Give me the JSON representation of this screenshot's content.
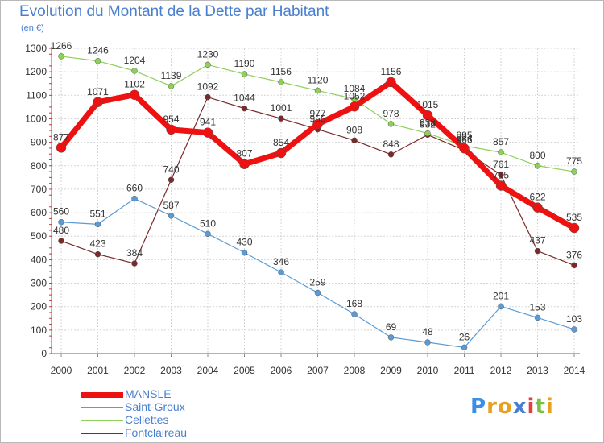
{
  "title": "Evolution du Montant de la Dette par Habitant",
  "unit_label": "(en €)",
  "logo": {
    "text": "Proxiti",
    "letter_colors": [
      "#3a8ee6",
      "#e8a020",
      "#e8a020",
      "#4a7fd0",
      "#e04040",
      "#7ac143",
      "#e8a020"
    ]
  },
  "chart_data": {
    "type": "line",
    "x": [
      "2000",
      "2001",
      "2002",
      "2003",
      "2004",
      "2005",
      "2006",
      "2007",
      "2008",
      "2009",
      "2010",
      "2011",
      "2012",
      "2013",
      "2014"
    ],
    "ylim": [
      0,
      1300
    ],
    "yticks": [
      "0",
      "100",
      "200",
      "300",
      "400",
      "500",
      "600",
      "700",
      "800",
      "900",
      "1000",
      "1100",
      "1200",
      "1300"
    ],
    "grid": true,
    "legend_position": "bottom-left",
    "series": [
      {
        "name": "Fontclaireau",
        "color": "#7a2a2a",
        "values": [
          480,
          423,
          384,
          740,
          1092,
          1044,
          1001,
          955,
          908,
          848,
          932,
          866,
          761,
          437,
          376
        ]
      },
      {
        "name": "Cellettes",
        "color": "#8fd05a",
        "values": [
          1266,
          1246,
          1204,
          1139,
          1230,
          1190,
          1156,
          1120,
          1084,
          978,
          938,
          885,
          857,
          800,
          775
        ]
      },
      {
        "name": "Saint-Groux",
        "color": "#5b9bd5",
        "values": [
          560,
          551,
          660,
          587,
          510,
          430,
          346,
          259,
          168,
          69,
          48,
          26,
          201,
          153,
          103
        ]
      },
      {
        "name": "MANSLE",
        "color": "#ee1111",
        "values": [
          877,
          1071,
          1102,
          954,
          941,
          807,
          854,
          977,
          1052,
          1156,
          1015,
          874,
          715,
          622,
          535
        ]
      }
    ],
    "legend_order": [
      "MANSLE",
      "Saint-Groux",
      "Cellettes",
      "Fontclaireau"
    ]
  }
}
